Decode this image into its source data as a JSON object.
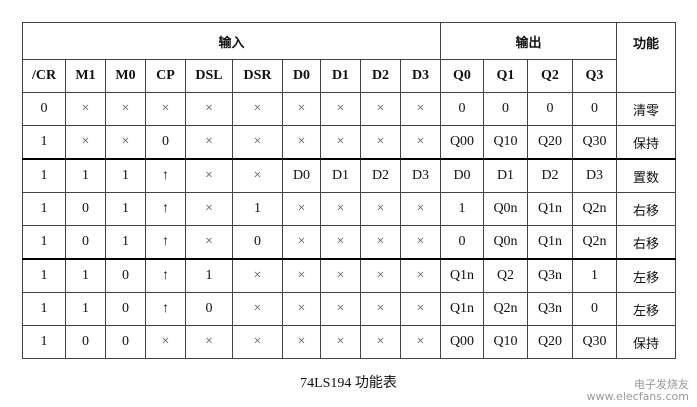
{
  "header": {
    "inputs": "输入",
    "outputs": "输出",
    "function": "功能"
  },
  "columns": [
    "/CR",
    "M1",
    "M0",
    "CP",
    "DSL",
    "DSR",
    "D0",
    "D1",
    "D2",
    "D3",
    "Q0",
    "Q1",
    "Q2",
    "Q3"
  ],
  "rows": [
    [
      "0",
      "×",
      "×",
      "×",
      "×",
      "×",
      "×",
      "×",
      "×",
      "×",
      "0",
      "0",
      "0",
      "0",
      "清零"
    ],
    [
      "1",
      "×",
      "×",
      "0",
      "×",
      "×",
      "×",
      "×",
      "×",
      "×",
      "Q00",
      "Q10",
      "Q20",
      "Q30",
      "保持"
    ],
    [
      "1",
      "1",
      "1",
      "↑",
      "×",
      "×",
      "D0",
      "D1",
      "D2",
      "D3",
      "D0",
      "D1",
      "D2",
      "D3",
      "置数"
    ],
    [
      "1",
      "0",
      "1",
      "↑",
      "×",
      "1",
      "×",
      "×",
      "×",
      "×",
      "1",
      "Q0n",
      "Q1n",
      "Q2n",
      "右移"
    ],
    [
      "1",
      "0",
      "1",
      "↑",
      "×",
      "0",
      "×",
      "×",
      "×",
      "×",
      "0",
      "Q0n",
      "Q1n",
      "Q2n",
      "右移"
    ],
    [
      "1",
      "1",
      "0",
      "↑",
      "1",
      "×",
      "×",
      "×",
      "×",
      "×",
      "Q1n",
      "Q2",
      "Q3n",
      "1",
      "左移"
    ],
    [
      "1",
      "1",
      "0",
      "↑",
      "0",
      "×",
      "×",
      "×",
      "×",
      "×",
      "Q1n",
      "Q2n",
      "Q3n",
      "0",
      "左移"
    ],
    [
      "1",
      "0",
      "0",
      "×",
      "×",
      "×",
      "×",
      "×",
      "×",
      "×",
      "Q00",
      "Q10",
      "Q20",
      "Q30",
      "保持"
    ]
  ],
  "caption": "74LS194 功能表",
  "watermark": "电子发烧友 www.elecfans.com"
}
